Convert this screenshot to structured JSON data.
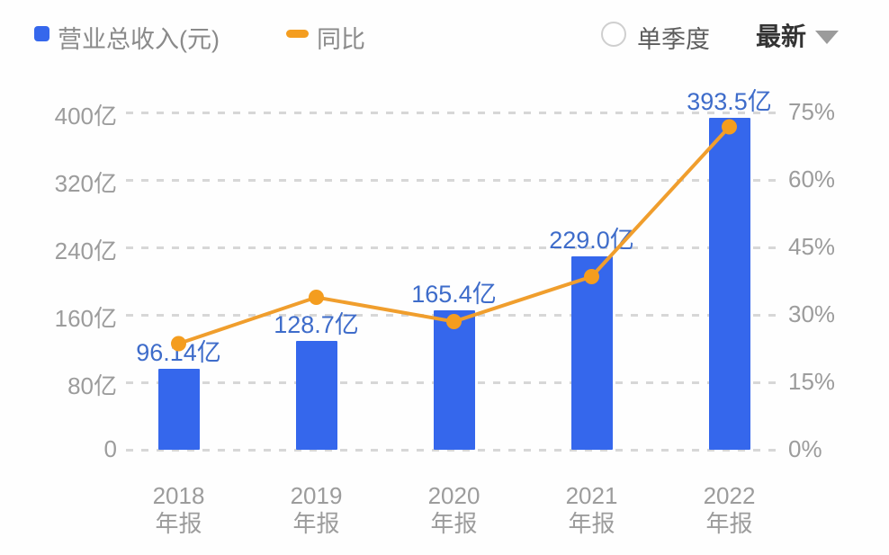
{
  "header": {
    "legend": [
      {
        "label": "营业总收入(元)",
        "marker": "square"
      },
      {
        "label": "同比",
        "marker": "dash"
      }
    ],
    "quarter_label": "单季度",
    "latest_label": "最新"
  },
  "colors": {
    "bar": "#3567ec",
    "bar_label": "#3e6cca",
    "line": "#f09e2d",
    "point": "#f49d1f",
    "axis_text": "#9c9c9c",
    "grid": "#d7d7d7"
  },
  "chart_data": {
    "type": "bar",
    "note": "combo bar + line chart",
    "categories": [
      {
        "year": "2018",
        "period": "年报"
      },
      {
        "year": "2019",
        "period": "年报"
      },
      {
        "year": "2020",
        "period": "年报"
      },
      {
        "year": "2021",
        "period": "年报"
      },
      {
        "year": "2022",
        "period": "年报"
      }
    ],
    "series": [
      {
        "name": "营业总收入(元)",
        "type": "bar",
        "unit": "亿",
        "values": [
          96.14,
          128.7,
          165.4,
          229.0,
          393.5
        ],
        "value_labels": [
          "96.14亿",
          "128.7亿",
          "165.4亿",
          "229.0亿",
          "393.5亿"
        ],
        "axis": "left"
      },
      {
        "name": "同比",
        "type": "line",
        "unit": "%",
        "values": [
          23.6,
          33.9,
          28.5,
          38.5,
          71.8
        ],
        "axis": "right"
      }
    ],
    "left_axis": {
      "min": 0,
      "max": 400,
      "ticks": [
        "400亿",
        "320亿",
        "240亿",
        "160亿",
        "80亿",
        "0"
      ]
    },
    "right_axis": {
      "min": 0,
      "max": 75,
      "ticks": [
        "75%",
        "60%",
        "45%",
        "30%",
        "15%",
        "0%"
      ]
    },
    "grid": "horizontal-dashed",
    "legend_position": "top-left"
  }
}
